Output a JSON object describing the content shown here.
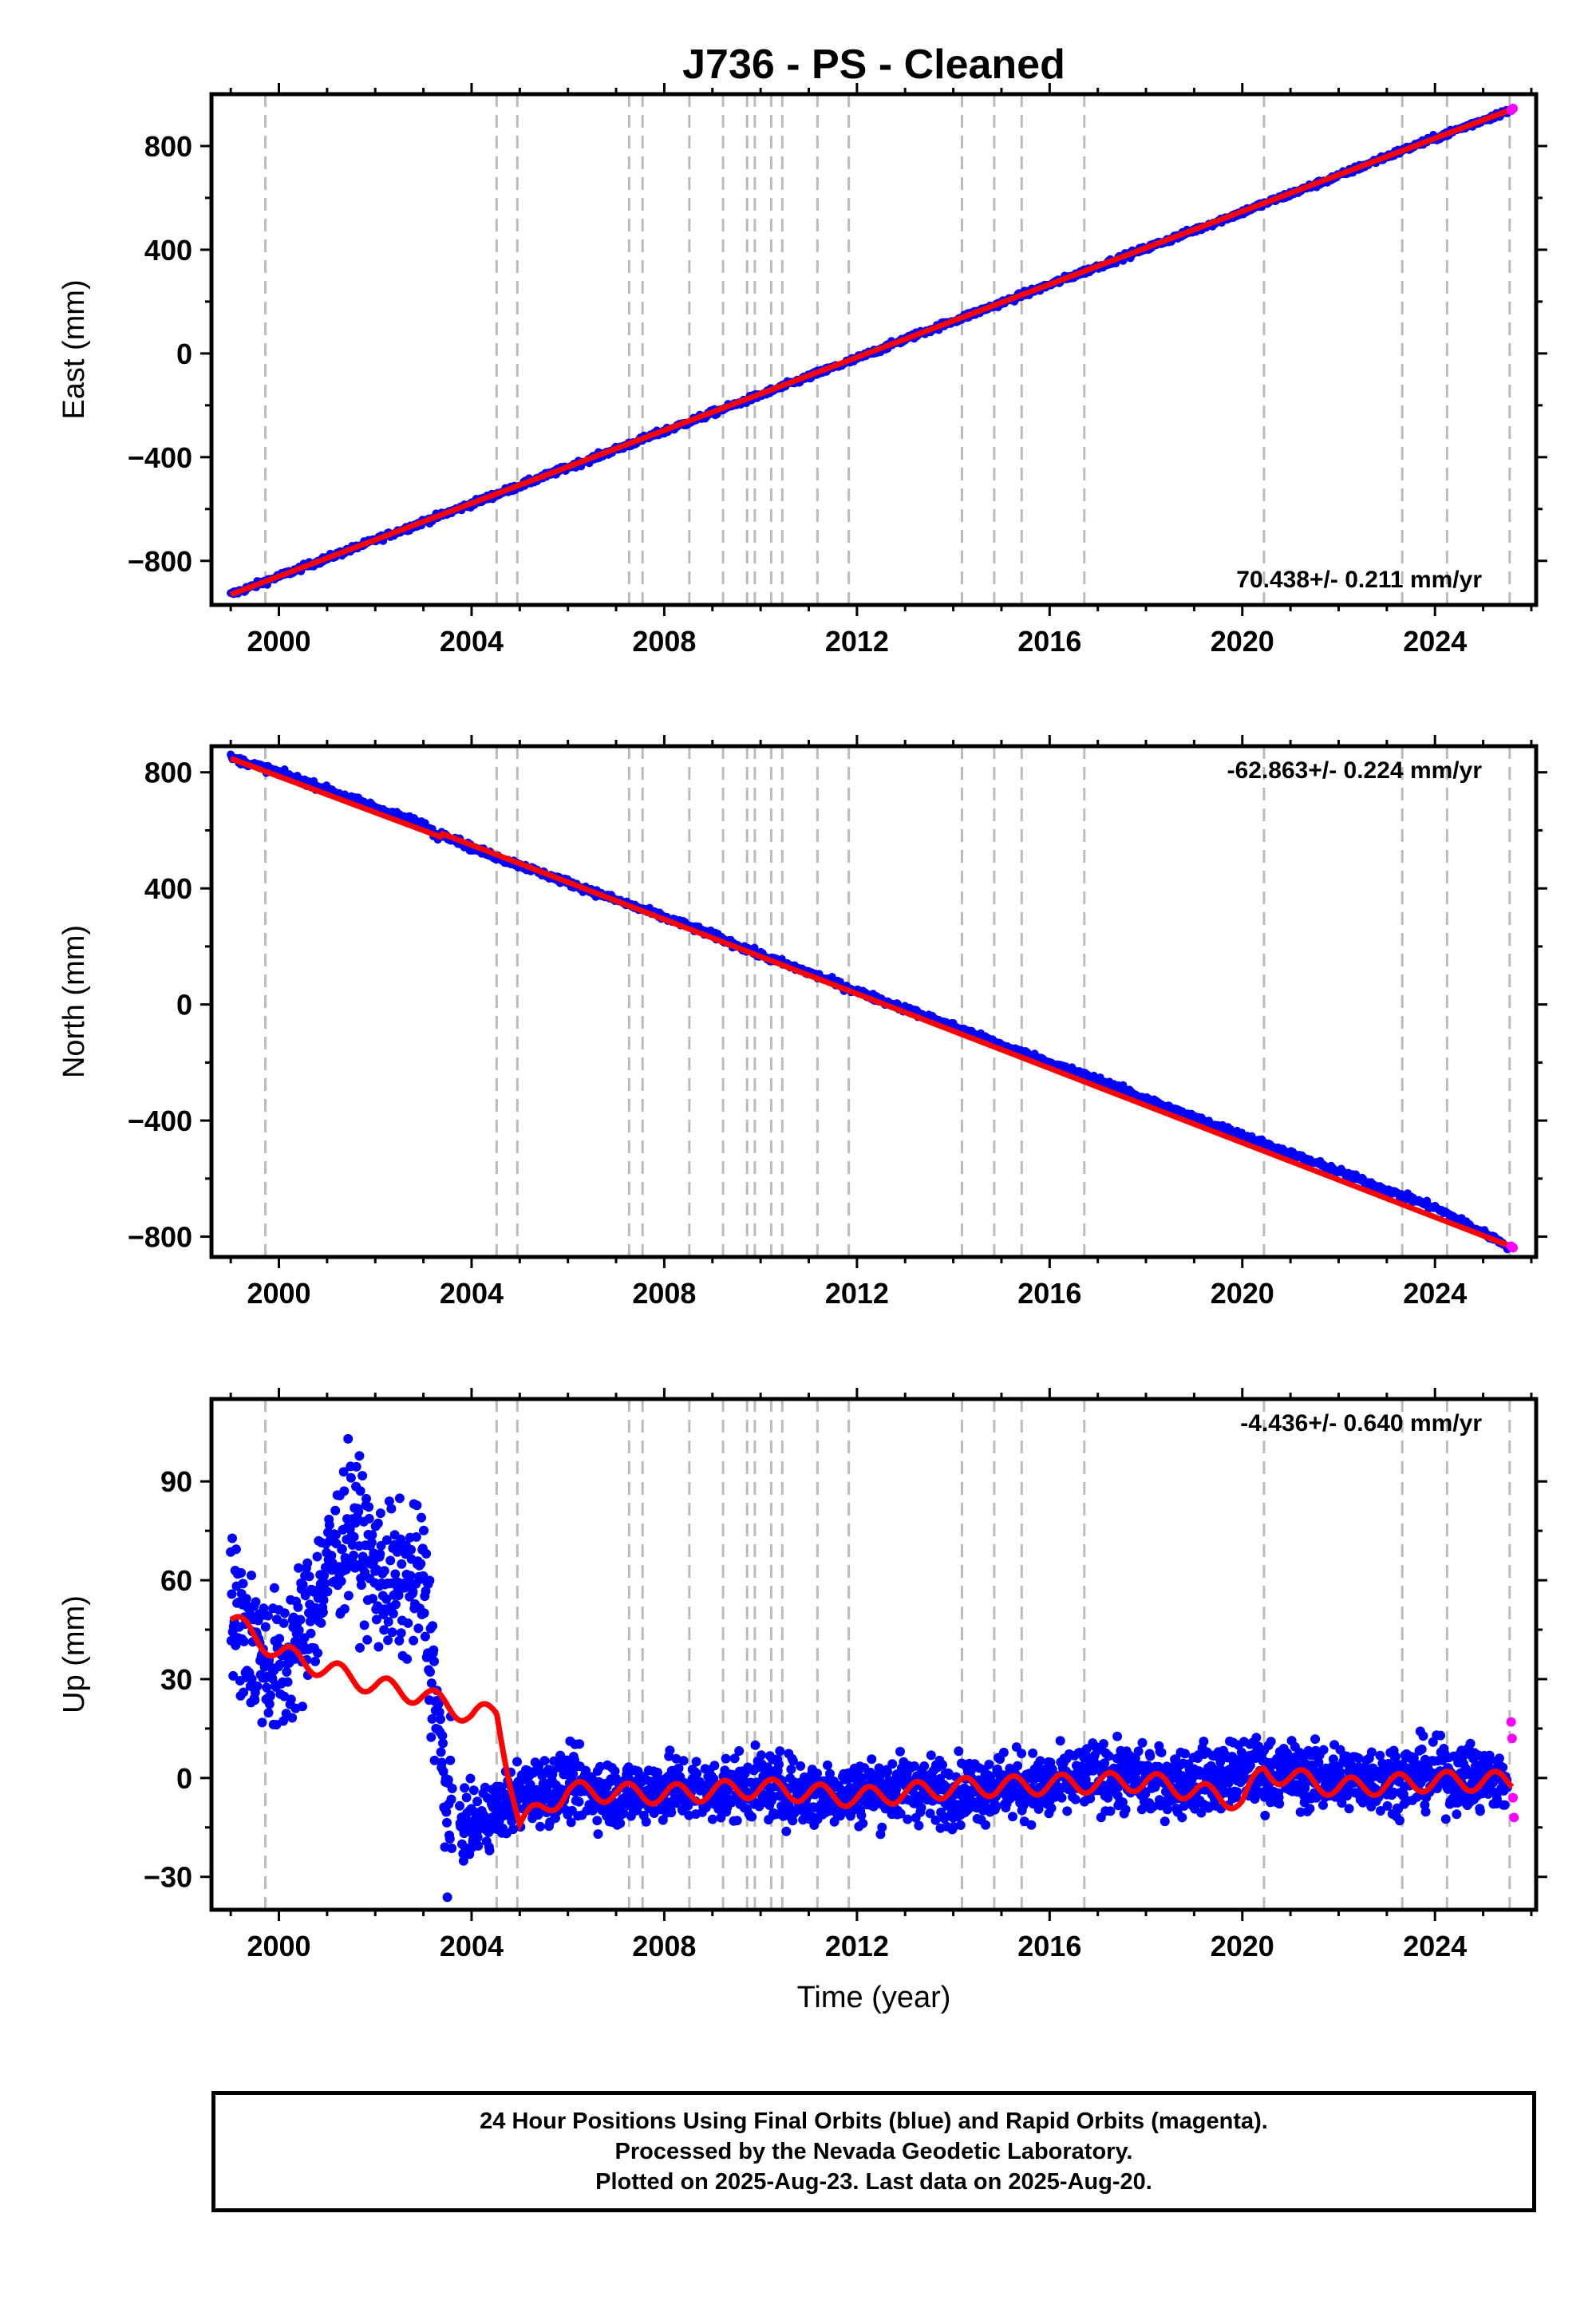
{
  "title": "J736  - PS - Cleaned",
  "colors": {
    "final_points": "#0000ff",
    "rapid_points": "#ff00ff",
    "model_line": "#ff0000",
    "event_lines": "#bbbbbb",
    "frame": "#000000"
  },
  "xlabel": "Time (year)",
  "caption": [
    "24 Hour Positions Using Final Orbits (blue) and Rapid Orbits (magenta).",
    "Processed by the Nevada Geodetic Laboratory.",
    "Plotted on 2025-Aug-23. Last data on 2025-Aug-20."
  ],
  "event_lines_years": [
    1999.72,
    2004.52,
    2004.95,
    2007.27,
    2007.55,
    2008.52,
    2009.22,
    2009.72,
    2009.88,
    2010.22,
    2010.45,
    2011.18,
    2011.83,
    2014.18,
    2014.85,
    2015.42,
    2016.72,
    2020.45,
    2023.32,
    2024.25,
    2025.55
  ],
  "chart_data": [
    {
      "type": "scatter",
      "ylabel": "East (mm)",
      "rate_label": "70.438+/- 0.211 mm/yr",
      "xlim": [
        1998.6,
        2026.1
      ],
      "ylim": [
        -970,
        1000
      ],
      "xticks": [
        2000,
        2004,
        2008,
        2012,
        2016,
        2020,
        2024
      ],
      "xtick_labels": [
        "2000",
        "2004",
        "2008",
        "2012",
        "2016",
        "2020",
        "2024"
      ],
      "yticks": [
        -800,
        -400,
        0,
        400,
        800
      ],
      "ytick_labels": [
        "−800",
        "−400",
        "0",
        "400",
        "800"
      ],
      "series": [
        {
          "role": "final",
          "x": [
            1999.0,
            2000.0,
            2001.0,
            2002.0,
            2003.0,
            2004.0,
            2005.0,
            2006.0,
            2007.0,
            2008.0,
            2009.0,
            2010.0,
            2011.0,
            2012.0,
            2013.0,
            2014.0,
            2015.0,
            2016.0,
            2017.0,
            2018.0,
            2019.0,
            2020.0,
            2021.0,
            2022.0,
            2023.0,
            2024.0,
            2025.5
          ],
          "y": [
            -930,
            -860,
            -790,
            -720,
            -650,
            -580,
            -510,
            -440,
            -370,
            -300,
            -230,
            -160,
            -90,
            -20,
            55,
            125,
            195,
            265,
            335,
            405,
            475,
            545,
            615,
            685,
            760,
            830,
            935
          ]
        },
        {
          "role": "rapid",
          "x": [
            2025.58,
            2025.6,
            2025.62
          ],
          "y": [
            938,
            942,
            945
          ]
        },
        {
          "role": "model",
          "x": [
            1999.0,
            2025.6
          ],
          "y": [
            -930,
            942
          ]
        }
      ]
    },
    {
      "type": "scatter",
      "ylabel": "North (mm)",
      "rate_label": "-62.863+/- 0.224 mm/yr",
      "xlim": [
        1998.6,
        2026.1
      ],
      "ylim": [
        -870,
        890
      ],
      "xticks": [
        2000,
        2004,
        2008,
        2012,
        2016,
        2020,
        2024
      ],
      "xtick_labels": [
        "2000",
        "2004",
        "2008",
        "2012",
        "2016",
        "2020",
        "2024"
      ],
      "yticks": [
        -800,
        -400,
        0,
        400,
        800
      ],
      "ytick_labels": [
        "−800",
        "−400",
        "0",
        "400",
        "800"
      ],
      "series": [
        {
          "role": "final",
          "x": [
            1999.0,
            2000.0,
            2001.0,
            2002.0,
            2003.0,
            2003.3,
            2003.4,
            2004.0,
            2005.0,
            2006.0,
            2007.0,
            2008.0,
            2009.0,
            2010.0,
            2011.0,
            2012.0,
            2013.0,
            2014.0,
            2015.0,
            2016.0,
            2017.0,
            2018.0,
            2019.0,
            2020.0,
            2021.0,
            2022.0,
            2023.0,
            2024.0,
            2025.5
          ],
          "y": [
            850,
            800,
            740,
            680,
            620,
            580,
            590,
            540,
            480,
            420,
            360,
            300,
            240,
            170,
            110,
            45,
            -15,
            -75,
            -140,
            -200,
            -260,
            -325,
            -390,
            -450,
            -515,
            -575,
            -640,
            -700,
            -830
          ]
        },
        {
          "role": "rapid",
          "x": [
            2025.58,
            2025.6,
            2025.62
          ],
          "y": [
            -833,
            -836,
            -838
          ]
        },
        {
          "role": "model",
          "x": [
            1999.0,
            2003.35,
            2003.4,
            2025.6
          ],
          "y": [
            848,
            578,
            588,
            -835
          ]
        }
      ]
    },
    {
      "type": "scatter",
      "ylabel": "Up (mm)",
      "rate_label": "-4.436+/- 0.640 mm/yr",
      "xlim": [
        1998.6,
        2026.1
      ],
      "ylim": [
        -40,
        115
      ],
      "xticks": [
        2000,
        2004,
        2008,
        2012,
        2016,
        2020,
        2024
      ],
      "xtick_labels": [
        "2000",
        "2004",
        "2008",
        "2012",
        "2016",
        "2020",
        "2024"
      ],
      "yticks": [
        -30,
        0,
        30,
        60,
        90
      ],
      "ytick_labels": [
        "−30",
        "0",
        "30",
        "60",
        "90"
      ],
      "series": [
        {
          "role": "final",
          "x": [
            1999.0,
            1999.5,
            2000.0,
            2000.5,
            2001.0,
            2001.5,
            2002.0,
            2002.5,
            2003.0,
            2003.5,
            2004.0,
            2004.5,
            2005.0,
            2006.0,
            2007.0,
            2008.0,
            2009.0,
            2010.0,
            2011.0,
            2012.0,
            2013.0,
            2014.0,
            2015.0,
            2016.0,
            2017.0,
            2018.0,
            2019.0,
            2020.0,
            2021.0,
            2022.0,
            2023.0,
            2024.0,
            2025.5
          ],
          "y": [
            52,
            40,
            32,
            45,
            62,
            78,
            62,
            58,
            60,
            -12,
            -15,
            -10,
            -5,
            -2,
            -5,
            -3,
            -4,
            -2,
            -5,
            -4,
            -3,
            -4,
            -2,
            -3,
            1,
            -1,
            -1,
            2,
            1,
            0,
            0,
            1,
            -1
          ]
        },
        {
          "role": "rapid",
          "x": [
            2025.58,
            2025.6,
            2025.62,
            2025.64
          ],
          "y": [
            17,
            12,
            -6,
            -12
          ]
        },
        {
          "role": "model",
          "x": [
            1999.0,
            2000.0,
            2001.0,
            2002.0,
            2003.0,
            2004.0,
            2004.52,
            2005.0,
            2006.0,
            2008.0,
            2010.0,
            2012.0,
            2014.0,
            2016.0,
            2018.0,
            2020.0,
            2020.45,
            2022.0,
            2024.0,
            2025.6
          ],
          "y": [
            48,
            38,
            33,
            28,
            25,
            19,
            20,
            -14,
            -4,
            -5,
            -3,
            -6,
            -3,
            -2,
            -1,
            -7,
            2,
            -3,
            -1,
            -1
          ]
        }
      ]
    }
  ]
}
